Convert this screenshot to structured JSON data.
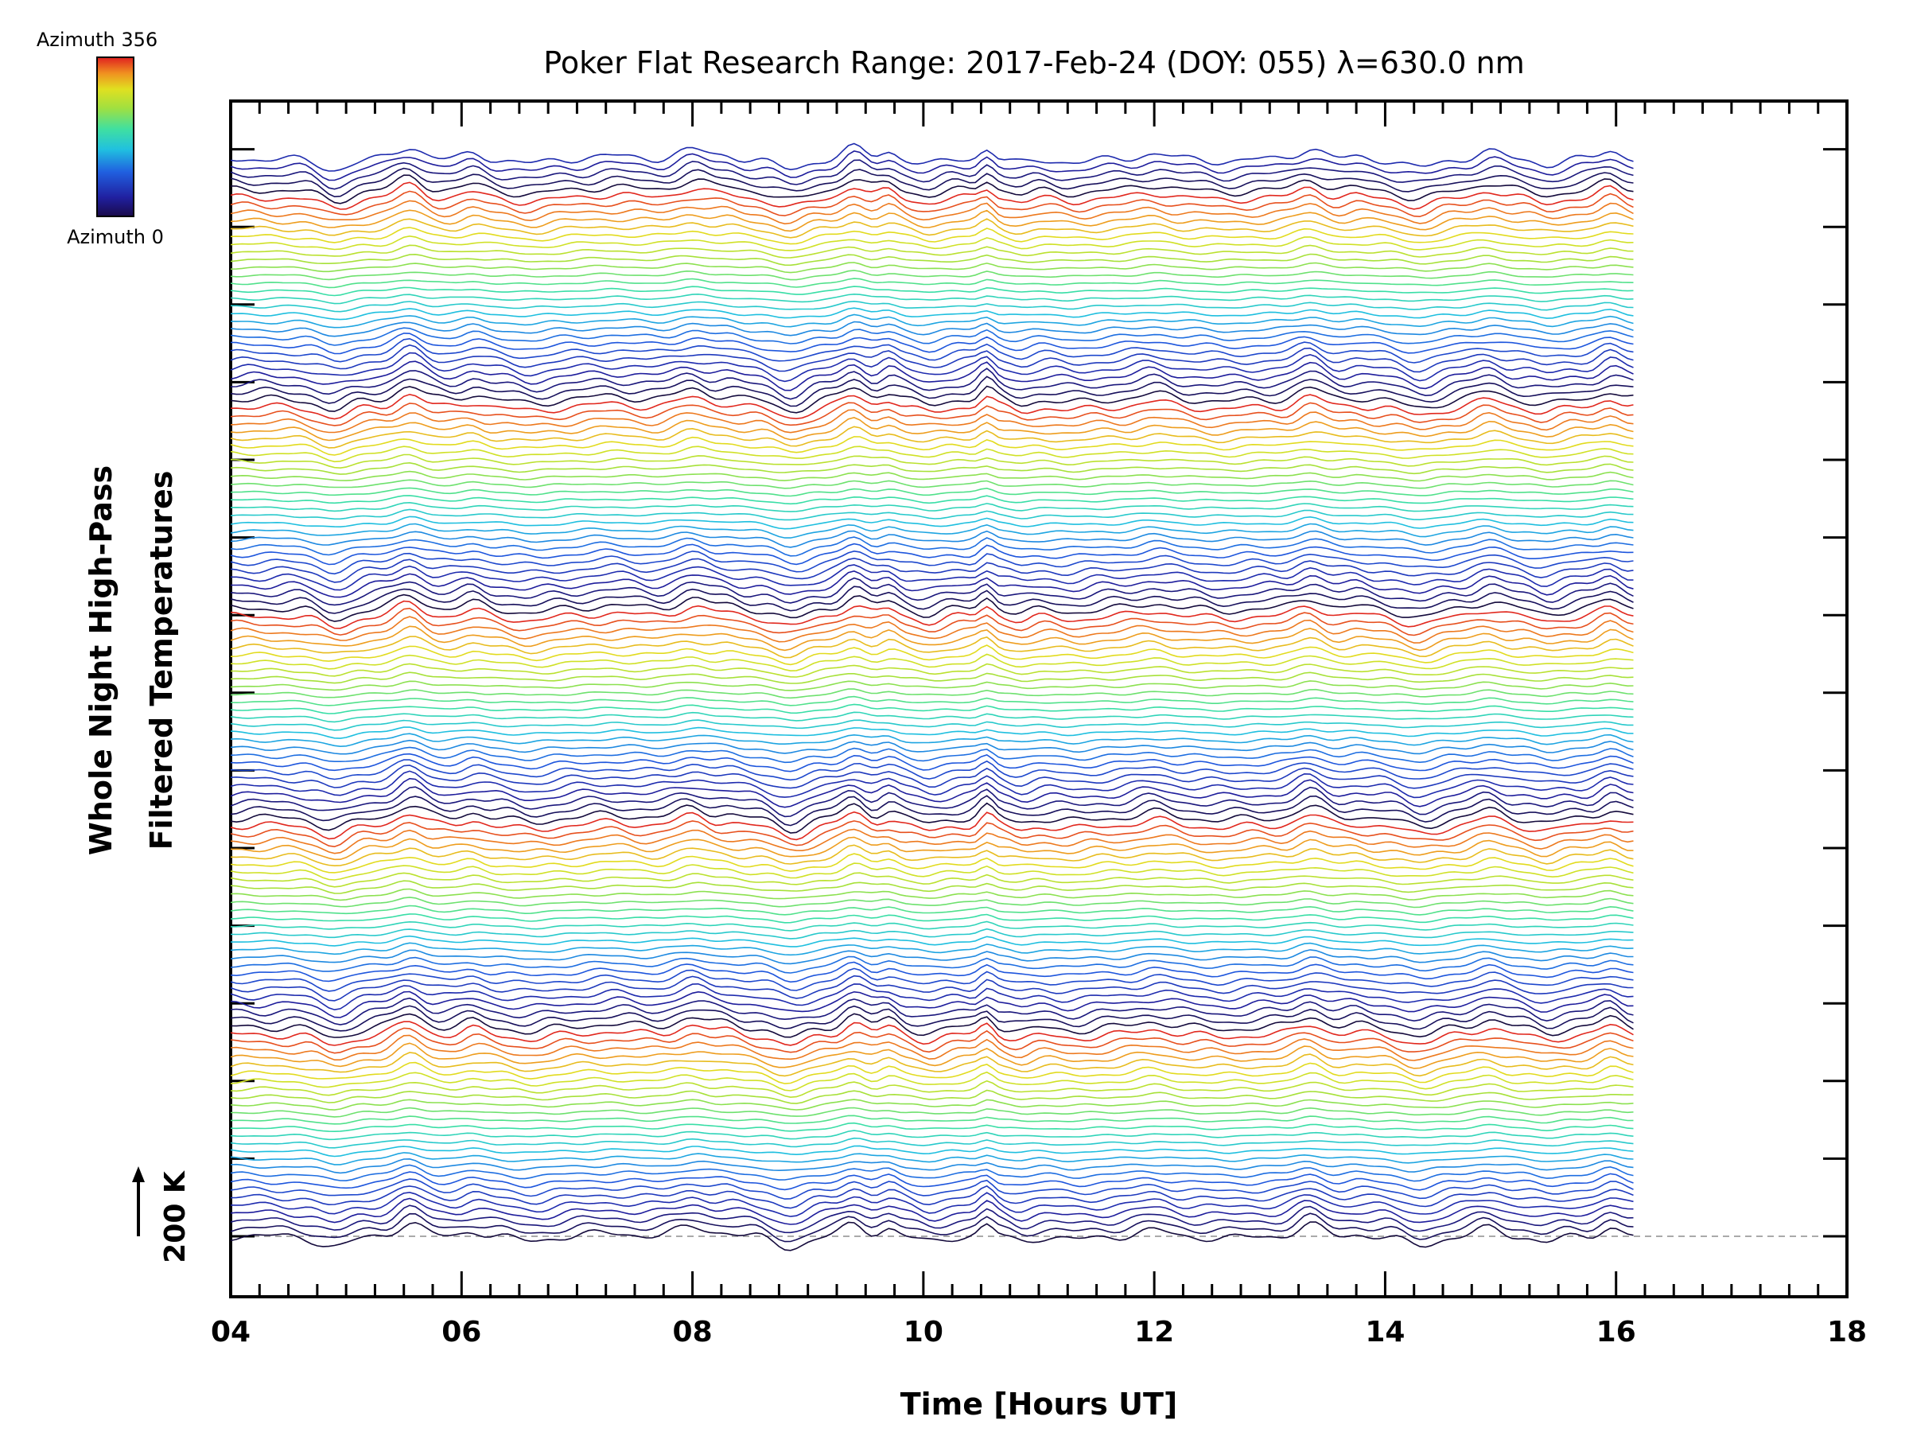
{
  "chart_data": {
    "type": "line",
    "title": "Poker Flat Research Range: 2017-Feb-24 (DOY: 055) λ=630.0 nm",
    "xlabel": "Time [Hours UT]",
    "ylabel_line1": "Whole Night High-Pass",
    "ylabel_line2": "Filtered Temperatures",
    "xlim": [
      4,
      18
    ],
    "x_tick_labels": [
      "04",
      "06",
      "08",
      "10",
      "12",
      "14",
      "16",
      "18"
    ],
    "x_data_range": [
      4,
      16.15
    ],
    "scale_bar_label": "200 K",
    "colorbar": {
      "top_label": "Azimuth 356",
      "bottom_label": "Azimuth 0",
      "colormap": "rainbow (dark blue to red)"
    },
    "series_count": 140,
    "series_azimuth_range": [
      0,
      356
    ],
    "series_description": "Stacked, vertically offset high-pass filtered temperature time series, one per azimuth, colored by azimuth",
    "grid": false
  },
  "colors": {
    "axis": "#000000",
    "baseline": "#aaaaaa",
    "background": "#ffffff"
  }
}
